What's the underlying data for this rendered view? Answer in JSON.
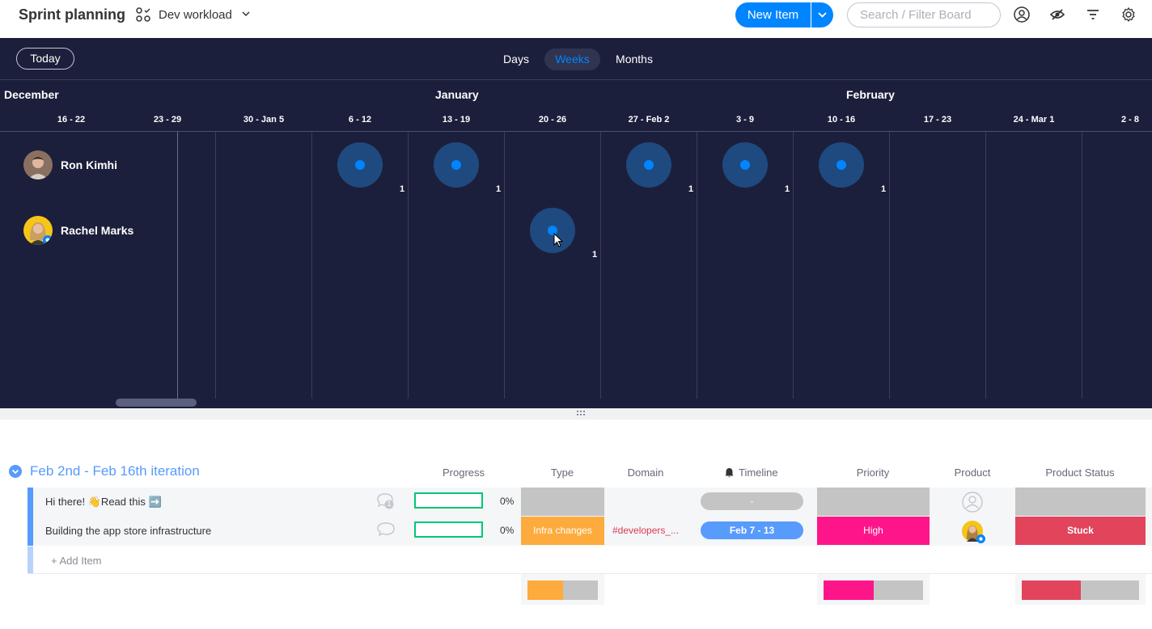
{
  "header": {
    "board_title": "Sprint planning",
    "view_name": "Dev workload",
    "new_item_label": "New Item",
    "search_placeholder": "Search / Filter Board"
  },
  "workload": {
    "today_label": "Today",
    "scale_tabs": [
      "Days",
      "Weeks",
      "Months"
    ],
    "active_scale": "Weeks",
    "months": [
      "December",
      "January",
      "February"
    ],
    "weeks": [
      "16 - 22",
      "23 - 29",
      "30 - Jan 5",
      "6 - 12",
      "13 - 19",
      "20 - 26",
      "27 - Feb 2",
      "3 - 9",
      "10 - 16",
      "17 - 23",
      "24 - Mar 1",
      "2 - 8"
    ],
    "people": [
      {
        "name": "Ron Kimhi",
        "counts": [
          "1",
          "1",
          "1",
          "1",
          "1"
        ]
      },
      {
        "name": "Rachel Marks",
        "counts": [
          "1"
        ]
      }
    ]
  },
  "group": {
    "title": "Feb 2nd - Feb 16th iteration",
    "color": "#579bfc",
    "columns": [
      "Progress",
      "Type",
      "Domain",
      "Timeline",
      "Priority",
      "Product",
      "Product Status"
    ],
    "rows": [
      {
        "name": "Hi there! 👋Read this ➡️",
        "progress": "0%",
        "type": "",
        "domain": "",
        "timeline": "-",
        "priority": "",
        "product_status": "",
        "update_count": "1"
      },
      {
        "name": "Building the app store infrastructure",
        "progress": "0%",
        "type": "Infra changes",
        "domain": "#developers_...",
        "timeline": "Feb 7 - 13",
        "priority": "High",
        "product_status": "Stuck"
      }
    ],
    "add_item_label": "+ Add Item",
    "colors": {
      "infra": "#fdab3d",
      "high": "#ff158a",
      "stuck": "#e2445c",
      "empty": "#c4c4c4",
      "timeline": "#579bfc",
      "progress": "#00c875"
    },
    "summary": {
      "type_fraction": 0.5,
      "priority_fraction": 0.5,
      "status_fraction": 0.5
    }
  }
}
